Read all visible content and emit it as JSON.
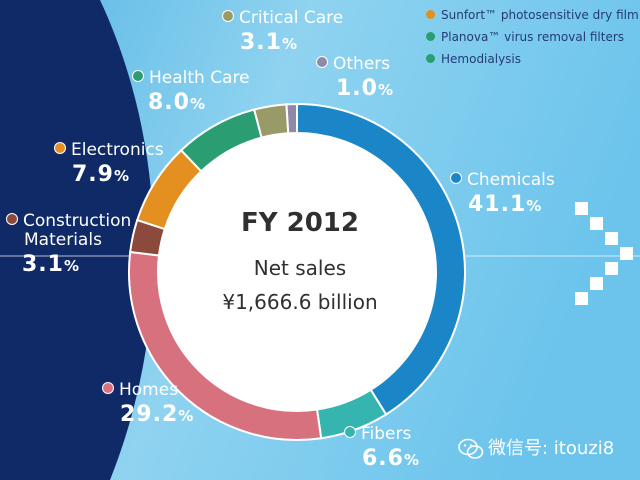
{
  "chart_data": {
    "type": "donut",
    "title": "FY 2012",
    "subtitle": "Net sales",
    "total": "¥1,666.6 billion",
    "slices": [
      {
        "name": "Chemicals",
        "value": 41.1,
        "display": "41.1",
        "color": "#1a86c8"
      },
      {
        "name": "Fibers",
        "value": 6.6,
        "display": "6.6",
        "color": "#36b4b0"
      },
      {
        "name": "Homes",
        "value": 29.2,
        "display": "29.2",
        "color": "#d7717e"
      },
      {
        "name": "Construction Materials",
        "value": 3.1,
        "display": "3.1",
        "color": "#8b4a3c"
      },
      {
        "name": "Electronics",
        "value": 7.9,
        "display": "7.9",
        "color": "#e49020"
      },
      {
        "name": "Health Care",
        "value": 8.0,
        "display": "8.0",
        "color": "#2a9e72"
      },
      {
        "name": "Critical Care",
        "value": 3.1,
        "display": "3.1",
        "color": "#9a9a68"
      },
      {
        "name": "Others",
        "value": 1.0,
        "display": "1.0",
        "color": "#9088a8"
      }
    ],
    "unit": "%",
    "legend": [
      {
        "label": "Sunfort™ photosensitive dry film",
        "color": "#e49020"
      },
      {
        "label": "Planova™ virus removal filters",
        "color": "#2a9e72"
      },
      {
        "label": "Hemodialysis",
        "color": "#2a9e72"
      }
    ]
  },
  "labels": {
    "chemicals": {
      "name": "Chemicals",
      "value": "41.1"
    },
    "fibers": {
      "name": "Fibers",
      "value": "6.6"
    },
    "homes": {
      "name": "Homes",
      "value": "29.2"
    },
    "construction": {
      "name1": "Construction",
      "name2": "Materials",
      "value": "3.1"
    },
    "electronics": {
      "name": "Electronics",
      "value": "7.9"
    },
    "health_care": {
      "name": "Health Care",
      "value": "8.0"
    },
    "critical_care": {
      "name": "Critical Care",
      "value": "3.1"
    },
    "others": {
      "name": "Others",
      "value": "1.0"
    },
    "pct": "%"
  },
  "watermark": {
    "text": "微信号: itouzi8",
    "icon": "wechat-icon"
  },
  "colors": {
    "navy": "#0f2a66",
    "sky": "#7fcdec"
  }
}
